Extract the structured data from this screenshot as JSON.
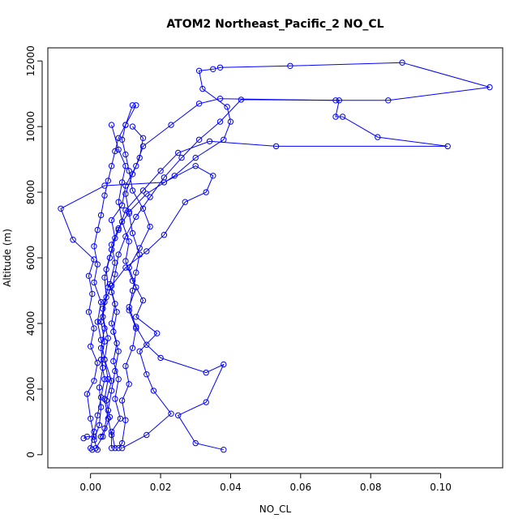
{
  "chart_data": {
    "type": "line",
    "title": "ATOM2 Northeast_Pacific_2 NO_CL",
    "xlabel": "NO_CL",
    "ylabel": "Altitude (m)",
    "xlim": [
      -0.0122,
      0.1177
    ],
    "ylim": [
      -400,
      12400
    ],
    "x_ticks": [
      "0.00",
      "0.02",
      "0.04",
      "0.06",
      "0.08",
      "0.10"
    ],
    "x_tick_values": [
      0,
      0.02,
      0.04,
      0.06,
      0.08,
      0.1
    ],
    "y_ticks": [
      "0",
      "2000",
      "4000",
      "6000",
      "8000",
      "10000",
      "12000"
    ],
    "y_tick_values": [
      0,
      2000,
      4000,
      6000,
      8000,
      10000,
      12000
    ],
    "grid": false,
    "color": "#0000ff",
    "marker": "open-circle",
    "series": [
      {
        "points": [
          [
            0.0015,
            200
          ],
          [
            0.0035,
            550
          ],
          [
            0.0055,
            1150
          ],
          [
            0.0045,
            1650
          ],
          [
            0.006,
            2250
          ],
          [
            0.004,
            2900
          ],
          [
            0.005,
            3550
          ],
          [
            0.0035,
            4200
          ],
          [
            0.0045,
            4800
          ],
          [
            0.004,
            5400
          ],
          [
            0.0055,
            6000
          ],
          [
            0.007,
            6600
          ],
          [
            0.006,
            7150
          ],
          [
            0.009,
            7600
          ],
          [
            0.01,
            8200
          ],
          [
            0.013,
            8800
          ],
          [
            0.015,
            9400
          ],
          [
            0.023,
            10050
          ],
          [
            0.031,
            10700
          ],
          [
            0.037,
            10850
          ],
          [
            0.07,
            10800
          ],
          [
            0.085,
            10800
          ],
          [
            0.114,
            11200
          ],
          [
            0.089,
            11950
          ],
          [
            0.057,
            11850
          ],
          [
            0.037,
            11800
          ],
          [
            0.035,
            11750
          ],
          [
            0.031,
            11700
          ],
          [
            0.032,
            11150
          ],
          [
            0.039,
            10600
          ],
          [
            0.04,
            10150
          ],
          [
            0.038,
            9600
          ],
          [
            0.03,
            9050
          ],
          [
            0.024,
            8500
          ],
          [
            0.016,
            7950
          ],
          [
            0.011,
            7400
          ],
          [
            0.008,
            6900
          ],
          [
            0.006,
            6400
          ],
          [
            0.007,
            5850
          ],
          [
            0.0055,
            5200
          ],
          [
            0.007,
            4600
          ],
          [
            0.006,
            4000
          ],
          [
            0.0075,
            3400
          ],
          [
            0.0065,
            2850
          ],
          [
            0.008,
            2300
          ],
          [
            0.007,
            1700
          ],
          [
            0.0085,
            1100
          ],
          [
            0.006,
            700
          ],
          [
            0.007,
            200
          ]
        ]
      },
      {
        "points": [
          [
            0.002,
            150
          ],
          [
            0.001,
            450
          ],
          [
            0.0025,
            900
          ],
          [
            0.003,
            1450
          ],
          [
            0.0025,
            2050
          ],
          [
            0.0035,
            2650
          ],
          [
            0.003,
            3250
          ],
          [
            0.004,
            3850
          ],
          [
            0.0035,
            4450
          ],
          [
            0.005,
            5100
          ],
          [
            0.0045,
            5650
          ],
          [
            0.006,
            6250
          ],
          [
            0.008,
            6850
          ],
          [
            0.01,
            7450
          ],
          [
            0.015,
            8050
          ],
          [
            0.02,
            8650
          ],
          [
            0.025,
            9200
          ],
          [
            0.034,
            9550
          ],
          [
            0.053,
            9400
          ],
          [
            0.102,
            9400
          ],
          [
            0.082,
            9680
          ],
          [
            0.072,
            10300
          ],
          [
            0.07,
            10300
          ],
          [
            0.071,
            10800
          ],
          [
            0.043,
            10820
          ],
          [
            0.037,
            10150
          ],
          [
            0.031,
            9600
          ],
          [
            0.026,
            9050
          ],
          [
            0.021,
            8450
          ],
          [
            0.017,
            7850
          ],
          [
            0.013,
            7250
          ],
          [
            0.01,
            6650
          ],
          [
            0.008,
            6100
          ],
          [
            0.007,
            5500
          ],
          [
            0.006,
            4950
          ],
          [
            0.0075,
            4350
          ],
          [
            0.0065,
            3750
          ],
          [
            0.008,
            3150
          ],
          [
            0.007,
            2550
          ],
          [
            0.006,
            1950
          ],
          [
            0.005,
            1350
          ],
          [
            0.004,
            800
          ],
          [
            0.003,
            550
          ]
        ]
      },
      {
        "points": [
          [
            -0.002,
            500
          ],
          [
            -0.001,
            550
          ],
          [
            0.001,
            550
          ],
          [
            0.0,
            1100
          ],
          [
            -0.001,
            1850
          ],
          [
            0.001,
            2250
          ],
          [
            0.002,
            2800
          ],
          [
            0.0,
            3300
          ],
          [
            0.001,
            3850
          ],
          [
            -0.0005,
            4350
          ],
          [
            0.0005,
            4900
          ],
          [
            -0.0005,
            5450
          ],
          [
            0.001,
            5950
          ],
          [
            -0.005,
            6550
          ],
          [
            -0.0085,
            7500
          ],
          [
            0.004,
            8200
          ],
          [
            0.021,
            8300
          ],
          [
            0.03,
            8800
          ],
          [
            0.035,
            8500
          ],
          [
            0.033,
            8000
          ],
          [
            0.027,
            7700
          ],
          [
            0.021,
            6700
          ],
          [
            0.016,
            6200
          ],
          [
            0.01,
            5700
          ],
          [
            0.006,
            5150
          ],
          [
            0.004,
            4650
          ],
          [
            0.003,
            4050
          ],
          [
            0.004,
            3450
          ],
          [
            0.003,
            2900
          ],
          [
            0.004,
            2300
          ],
          [
            0.003,
            1750
          ],
          [
            0.002,
            1200
          ],
          [
            0.001,
            700
          ],
          [
            0.0,
            200
          ],
          [
            0.0005,
            150
          ]
        ]
      },
      {
        "points": [
          [
            0.012,
            10650
          ],
          [
            0.01,
            10050
          ],
          [
            0.008,
            9650
          ],
          [
            0.007,
            9250
          ],
          [
            0.006,
            8800
          ],
          [
            0.005,
            8350
          ],
          [
            0.004,
            7900
          ],
          [
            0.003,
            7300
          ],
          [
            0.002,
            6850
          ],
          [
            0.001,
            6350
          ],
          [
            0.002,
            5800
          ],
          [
            0.001,
            5250
          ],
          [
            0.003,
            4650
          ],
          [
            0.002,
            4050
          ],
          [
            0.003,
            3500
          ],
          [
            0.004,
            2900
          ],
          [
            0.005,
            2300
          ],
          [
            0.004,
            1700
          ],
          [
            0.005,
            1100
          ],
          [
            0.006,
            600
          ],
          [
            0.006,
            200
          ]
        ]
      },
      {
        "points": [
          [
            0.038,
            150
          ],
          [
            0.03,
            350
          ],
          [
            0.025,
            1200
          ],
          [
            0.033,
            1600
          ],
          [
            0.038,
            2750
          ],
          [
            0.033,
            2500
          ],
          [
            0.02,
            2950
          ],
          [
            0.016,
            3350
          ],
          [
            0.013,
            3900
          ],
          [
            0.011,
            4500
          ],
          [
            0.013,
            5100
          ],
          [
            0.011,
            5700
          ],
          [
            0.014,
            6300
          ],
          [
            0.017,
            6950
          ],
          [
            0.015,
            7500
          ],
          [
            0.012,
            8050
          ],
          [
            0.011,
            8650
          ],
          [
            0.01,
            9150
          ],
          [
            0.009,
            9600
          ],
          [
            0.01,
            10050
          ],
          [
            0.013,
            10650
          ]
        ]
      },
      {
        "points": [
          [
            0.009,
            200
          ],
          [
            0.016,
            600
          ],
          [
            0.023,
            1250
          ],
          [
            0.018,
            1950
          ],
          [
            0.016,
            2450
          ],
          [
            0.014,
            3150
          ],
          [
            0.019,
            3700
          ],
          [
            0.013,
            4200
          ],
          [
            0.015,
            4700
          ],
          [
            0.012,
            5300
          ],
          [
            0.01,
            5900
          ],
          [
            0.011,
            6500
          ],
          [
            0.009,
            7100
          ],
          [
            0.008,
            7700
          ],
          [
            0.009,
            8300
          ],
          [
            0.01,
            8800
          ],
          [
            0.008,
            9300
          ],
          [
            0.006,
            10050
          ]
        ]
      },
      {
        "points": [
          [
            0.008,
            200
          ],
          [
            0.009,
            350
          ],
          [
            0.01,
            1050
          ],
          [
            0.009,
            1650
          ],
          [
            0.011,
            2150
          ],
          [
            0.01,
            2700
          ],
          [
            0.012,
            3250
          ],
          [
            0.013,
            3850
          ],
          [
            0.011,
            4400
          ],
          [
            0.012,
            5000
          ],
          [
            0.013,
            5550
          ],
          [
            0.014,
            6100
          ],
          [
            0.012,
            6750
          ],
          [
            0.011,
            7350
          ],
          [
            0.01,
            7950
          ],
          [
            0.012,
            8550
          ],
          [
            0.014,
            9050
          ],
          [
            0.015,
            9650
          ],
          [
            0.012,
            10000
          ]
        ]
      }
    ]
  }
}
